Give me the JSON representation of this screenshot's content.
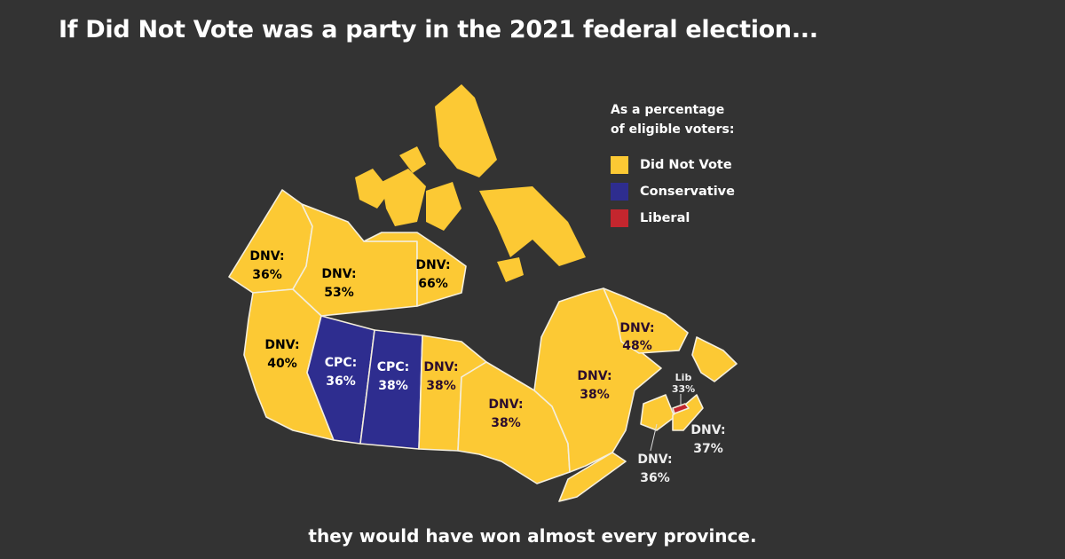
{
  "title": "If Did Not Vote was a party in the 2021 federal election...",
  "subtitle": "they would have won almost every province.",
  "legend": {
    "heading_line1": "As a percentage",
    "heading_line2": "of eligible voters:",
    "items": [
      {
        "label": "Did Not Vote",
        "color": "#fcc934"
      },
      {
        "label": "Conservative",
        "color": "#2e2d8f"
      },
      {
        "label": "Liberal",
        "color": "#c4262e"
      }
    ]
  },
  "colors": {
    "background": "#333333",
    "dnv": "#fcc934",
    "cpc": "#2e2d8f",
    "lib": "#c4262e",
    "dark_label": "#2b0d2e"
  },
  "provinces": {
    "yukon": {
      "party": "DNV",
      "l1": "DNV:",
      "l2": "36%"
    },
    "nwt": {
      "party": "DNV",
      "l1": "DNV:",
      "l2": "53%"
    },
    "nunavut": {
      "party": "DNV",
      "l1": "DNV:",
      "l2": "66%"
    },
    "bc": {
      "party": "DNV",
      "l1": "DNV:",
      "l2": "40%"
    },
    "alberta": {
      "party": "CPC",
      "l1": "CPC:",
      "l2": "36%"
    },
    "saskatchewan": {
      "party": "CPC",
      "l1": "CPC:",
      "l2": "38%"
    },
    "manitoba": {
      "party": "DNV",
      "l1": "DNV:",
      "l2": "38%"
    },
    "ontario": {
      "party": "DNV",
      "l1": "DNV:",
      "l2": "38%"
    },
    "quebec": {
      "party": "DNV",
      "l1": "DNV:",
      "l2": "38%"
    },
    "newfoundland_labrador": {
      "party": "DNV",
      "l1": "DNV:",
      "l2": "48%"
    },
    "pei": {
      "party": "Lib",
      "l1": "Lib",
      "l2": "33%"
    },
    "nova_scotia": {
      "party": "DNV",
      "l1": "DNV:",
      "l2": "37%"
    },
    "new_brunswick": {
      "party": "DNV",
      "l1": "DNV:",
      "l2": "36%"
    }
  }
}
